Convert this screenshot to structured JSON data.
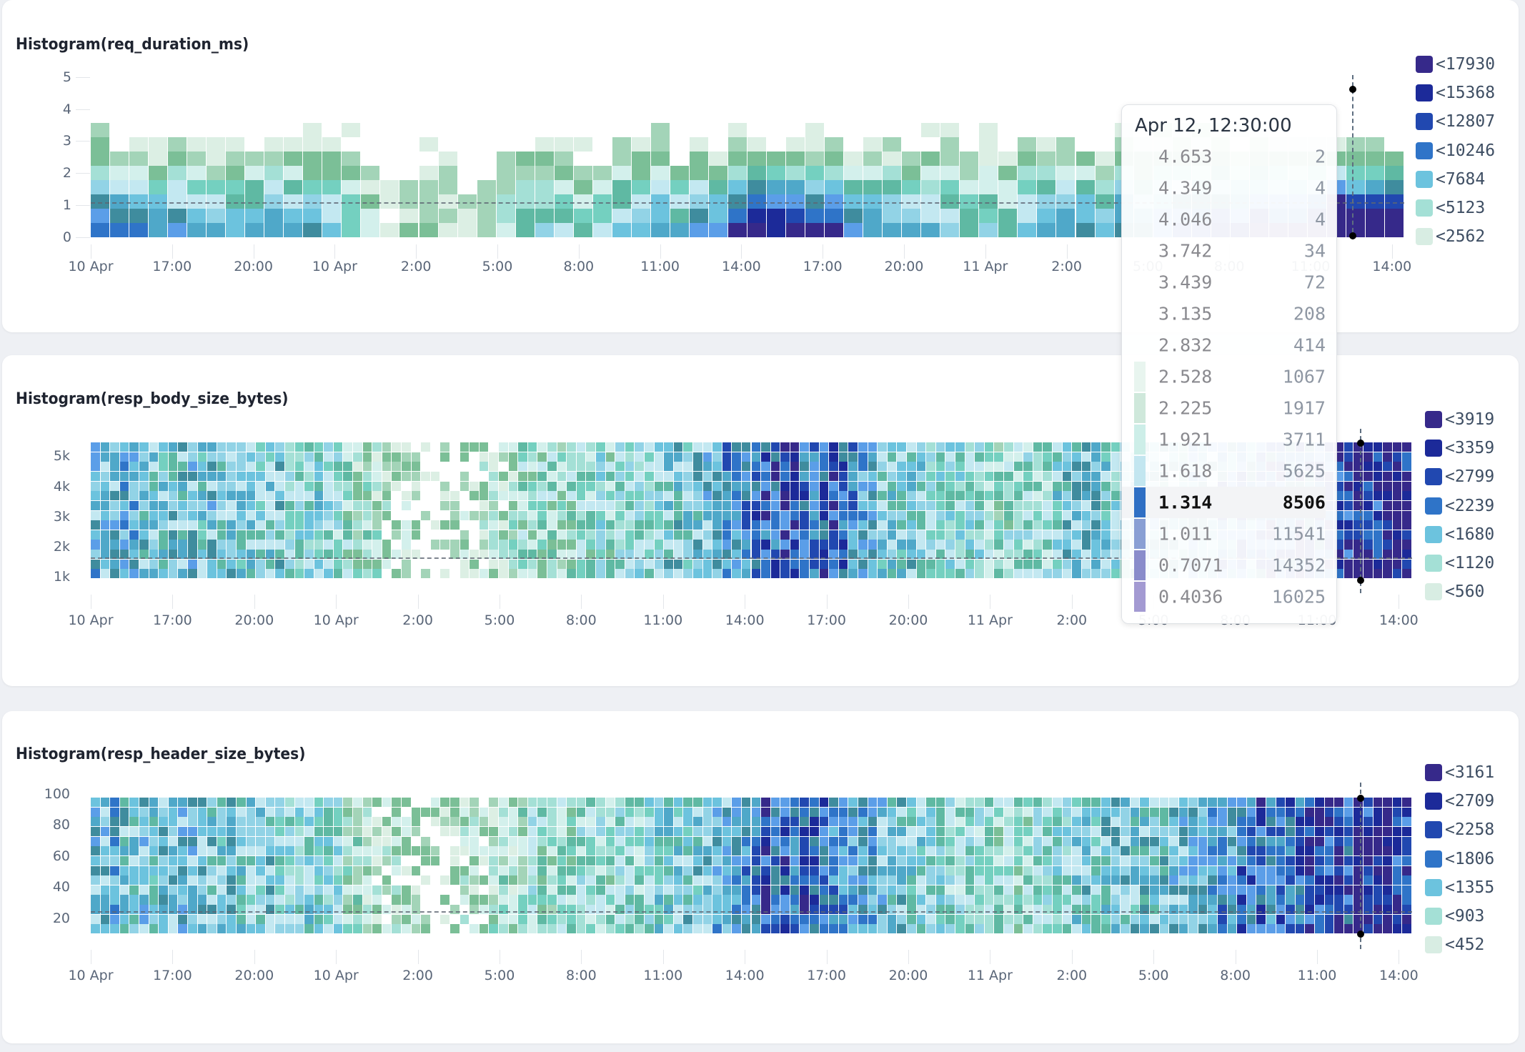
{
  "chart_data": [
    {
      "type": "heatmap",
      "title": "Histogram(req_duration_ms)",
      "y_ticks": [
        "0",
        "1",
        "2",
        "3",
        "4",
        "5"
      ],
      "ylim": [
        0,
        5
      ],
      "x_ticks": [
        "10 Apr",
        "17:00",
        "20:00",
        "10 Apr",
        "2:00",
        "5:00",
        "8:00",
        "11:00",
        "14:00",
        "17:00",
        "20:00",
        "11 Apr",
        "2:00",
        "5:00",
        "8:00",
        "11:00",
        "14:00"
      ],
      "legend": [
        {
          "label": "<17930",
          "color": "#36298a"
        },
        {
          "label": "<15368",
          "color": "#1c2a99"
        },
        {
          "label": "<12807",
          "color": "#2148b0"
        },
        {
          "label": "<10246",
          "color": "#2f74c8"
        },
        {
          "label": "<7684",
          "color": "#6cc3de"
        },
        {
          "label": "<5123",
          "color": "#a4e0d6"
        },
        {
          "label": "<2562",
          "color": "#d8ede3"
        }
      ],
      "legend_placement": "right"
    },
    {
      "type": "heatmap",
      "title": "Histogram(resp_body_size_bytes)",
      "y_ticks": [
        "1k",
        "2k",
        "3k",
        "4k",
        "5k"
      ],
      "x_ticks": [
        "10 Apr",
        "17:00",
        "20:00",
        "10 Apr",
        "2:00",
        "5:00",
        "8:00",
        "11:00",
        "14:00",
        "17:00",
        "20:00",
        "11 Apr",
        "2:00",
        "5:00",
        "8:00",
        "11:00",
        "14:00"
      ],
      "legend": [
        {
          "label": "<3919",
          "color": "#36298a"
        },
        {
          "label": "<3359",
          "color": "#1c2a99"
        },
        {
          "label": "<2799",
          "color": "#2148b0"
        },
        {
          "label": "<2239",
          "color": "#2f74c8"
        },
        {
          "label": "<1680",
          "color": "#6cc3de"
        },
        {
          "label": "<1120",
          "color": "#a4e0d6"
        },
        {
          "label": "<560",
          "color": "#d8ede3"
        }
      ],
      "legend_placement": "right"
    },
    {
      "type": "heatmap",
      "title": "Histogram(resp_header_size_bytes)",
      "y_ticks": [
        "20",
        "40",
        "60",
        "80",
        "100"
      ],
      "x_ticks": [
        "10 Apr",
        "17:00",
        "20:00",
        "10 Apr",
        "2:00",
        "5:00",
        "8:00",
        "11:00",
        "14:00",
        "17:00",
        "20:00",
        "11 Apr",
        "2:00",
        "5:00",
        "8:00",
        "11:00",
        "14:00"
      ],
      "legend": [
        {
          "label": "<3161",
          "color": "#36298a"
        },
        {
          "label": "<2709",
          "color": "#1c2a99"
        },
        {
          "label": "<2258",
          "color": "#2148b0"
        },
        {
          "label": "<1806",
          "color": "#2f74c8"
        },
        {
          "label": "<1355",
          "color": "#6cc3de"
        },
        {
          "label": "<903",
          "color": "#a4e0d6"
        },
        {
          "label": "<452",
          "color": "#d8ede3"
        }
      ],
      "legend_placement": "right"
    }
  ],
  "tooltip": {
    "title": "Apr 12, 12:30:00",
    "rows": [
      {
        "bucket": "4.653",
        "count": "2"
      },
      {
        "bucket": "4.349",
        "count": "4"
      },
      {
        "bucket": "4.046",
        "count": "4"
      },
      {
        "bucket": "3.742",
        "count": "34"
      },
      {
        "bucket": "3.439",
        "count": "72"
      },
      {
        "bucket": "3.135",
        "count": "208"
      },
      {
        "bucket": "2.832",
        "count": "414"
      },
      {
        "bucket": "2.528",
        "count": "1067",
        "color": "#e8f5ef"
      },
      {
        "bucket": "2.225",
        "count": "1917",
        "color": "#cfe8db"
      },
      {
        "bucket": "1.921",
        "count": "3711",
        "color": "#cdeee8"
      },
      {
        "bucket": "1.618",
        "count": "5625",
        "color": "#c3e6f0"
      },
      {
        "bucket": "1.314",
        "count": "8506",
        "color": "#2f6fc4",
        "highlight": true
      },
      {
        "bucket": "1.011",
        "count": "11541",
        "color": "#8a9fd4"
      },
      {
        "bucket": "0.7071",
        "count": "14352",
        "color": "#8a8ccb"
      },
      {
        "bucket": "0.4036",
        "count": "16025",
        "color": "#a39ad2"
      }
    ]
  }
}
